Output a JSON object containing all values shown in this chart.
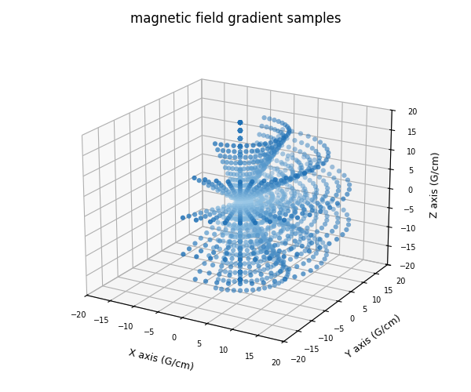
{
  "title": "magnetic field gradient samples",
  "xlabel": "X axis (G/cm)",
  "ylabel": "Y axis (G/cm)",
  "zlabel": "Z axis (G/cm)",
  "xlim": [
    -20,
    20
  ],
  "ylim": [
    -20,
    20
  ],
  "zlim": [
    -20,
    20
  ],
  "radii": [
    2,
    4,
    6,
    8,
    10,
    12,
    14,
    16,
    18,
    20
  ],
  "marker_size": 20,
  "elev": 20,
  "azim": -60,
  "color_inner": [
    0.6,
    0.78,
    0.9
  ],
  "color_outer": [
    0.12,
    0.44,
    0.71
  ],
  "alpha": 0.9,
  "n_arc_points": 30,
  "n_meridians": 9
}
